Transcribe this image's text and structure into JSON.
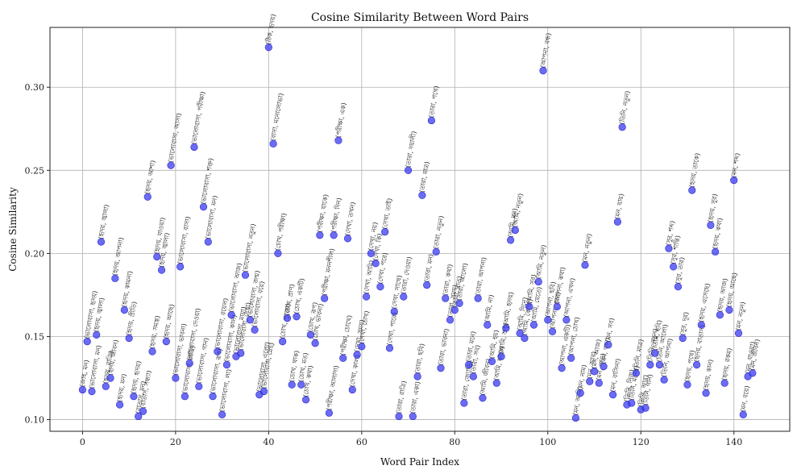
{
  "chart_data": {
    "type": "scatter",
    "title": "Cosine Similarity Between Word Pairs",
    "xlabel": "Word Pair Index",
    "ylabel": "Cosine Similarity",
    "xlim": [
      -7,
      152
    ],
    "ylim": [
      0.093,
      0.336
    ],
    "xticks": [
      0,
      20,
      40,
      60,
      80,
      100,
      120,
      140
    ],
    "yticks": [
      0.1,
      0.15,
      0.2,
      0.25,
      0.3
    ],
    "grid": true,
    "marker_color": "#3333ee",
    "points": [
      {
        "x": 0,
        "y": 0.118,
        "label": "(জাহ, মন)"
      },
      {
        "x": 1,
        "y": 0.147,
        "label": "(ভালোবাসা, হৃদয়)"
      },
      {
        "x": 2,
        "y": 0.117,
        "label": "(ভালোবাসা, মন)"
      },
      {
        "x": 3,
        "y": 0.151,
        "label": "(হৃদয়, জ্বালা)"
      },
      {
        "x": 4,
        "y": 0.207,
        "label": "(হৃদয়, জ্বালা)"
      },
      {
        "x": 5,
        "y": 0.12,
        "label": "(হৃদয়, রাত্রি)"
      },
      {
        "x": 6,
        "y": 0.125,
        "label": "(হৃদয়, জীবন)"
      },
      {
        "x": 7,
        "y": 0.185,
        "label": "(হৃদয়, আপনা)"
      },
      {
        "x": 8,
        "y": 0.109,
        "label": "(হৃদয়, মন)"
      },
      {
        "x": 9,
        "y": 0.166,
        "label": "(হৃদয়, কামনা)"
      },
      {
        "x": 10,
        "y": 0.149,
        "label": "(হৃদয়, প্রীতি)"
      },
      {
        "x": 11,
        "y": 0.114,
        "label": "(হৃদয়, হৃদয়)"
      },
      {
        "x": 12,
        "y": 0.102,
        "label": "(বাতাস, মন)"
      },
      {
        "x": 13,
        "y": 0.105,
        "label": "(বাতাস, সন্ধ্যা)"
      },
      {
        "x": 14,
        "y": 0.234,
        "label": "(হৃদয়, আশা)"
      },
      {
        "x": 15,
        "y": 0.141,
        "label": "(হৃদয়, সমস্ত)"
      },
      {
        "x": 16,
        "y": 0.198,
        "label": "(হৃদয়, যাওয়া)"
      },
      {
        "x": 17,
        "y": 0.19,
        "label": "(হৃদয়, জ্বালা)"
      },
      {
        "x": 18,
        "y": 0.147,
        "label": "(হৃদয়, আছে)"
      },
      {
        "x": 19,
        "y": 0.253,
        "label": "(ভালোবাসা, আসা)"
      },
      {
        "x": 20,
        "y": 0.125,
        "label": "(ভালোবাসা, ভাবনা)"
      },
      {
        "x": 21,
        "y": 0.192,
        "label": "(ভালোবাসা, বাসা)"
      },
      {
        "x": 22,
        "y": 0.114,
        "label": "(ভালোবাসা, রাত্রি)"
      },
      {
        "x": 23,
        "y": 0.134,
        "label": "(ভালোবাসা, দেওয়া)"
      },
      {
        "x": 24,
        "y": 0.264,
        "label": "(ভালোবাসা, পরীক্ষা)"
      },
      {
        "x": 25,
        "y": 0.12,
        "label": "(ভালোবাসা, গান)"
      },
      {
        "x": 26,
        "y": 0.228,
        "label": "(ভালোবাসা, শক্ত)"
      },
      {
        "x": 27,
        "y": 0.207,
        "label": "(ভালোবাসা, মন)"
      },
      {
        "x": 28,
        "y": 0.114,
        "label": "(ভালোবাসা, রূপ)"
      },
      {
        "x": 29,
        "y": 0.141,
        "label": "(ভালোবাসা, রয়েল)"
      },
      {
        "x": 30,
        "y": 0.103,
        "label": "(ভালোবাসা, লা)"
      },
      {
        "x": 31,
        "y": 0.133,
        "label": "(ভালোবাসা, কাল)"
      },
      {
        "x": 32,
        "y": 0.163,
        "label": "(ভালোবাসা, আজ)"
      },
      {
        "x": 33,
        "y": 0.138,
        "label": "(ভালোবাসা, মায়া)"
      },
      {
        "x": 34,
        "y": 0.14,
        "label": "(ভালোবাসা, দেখা)"
      },
      {
        "x": 35,
        "y": 0.187,
        "label": "(ভালোবাসা, নতুন)"
      },
      {
        "x": 36,
        "y": 0.16,
        "label": "(ভালোবাসা, জন্ম)"
      },
      {
        "x": 37,
        "y": 0.154,
        "label": "(ভালোবাসা, বয়ে)"
      },
      {
        "x": 38,
        "y": 0.115,
        "label": "(ভালোবাসা, এলো)"
      },
      {
        "x": 39,
        "y": 0.117,
        "label": "(ভালোবাসা, স্নেহ)"
      },
      {
        "x": 40,
        "y": 0.324,
        "label": "(ঠিক, হৃদয়)"
      },
      {
        "x": 41,
        "y": 0.266,
        "label": "(বাসা, মনোলোভা)"
      },
      {
        "x": 42,
        "y": 0.2,
        "label": "(চোখ, পরীক্ষা)"
      },
      {
        "x": 43,
        "y": 0.147,
        "label": "(চোখ, পুজো)"
      },
      {
        "x": 44,
        "y": 0.161,
        "label": "(চোখ, প্রাণ)"
      },
      {
        "x": 45,
        "y": 0.121,
        "label": "(চোখ, থাক)"
      },
      {
        "x": 46,
        "y": 0.162,
        "label": "(চোখ, একটি)"
      },
      {
        "x": 47,
        "y": 0.121,
        "label": "(চোখ, মত)"
      },
      {
        "x": 48,
        "y": 0.112,
        "label": "(চোখ, কথা)"
      },
      {
        "x": 49,
        "y": 0.151,
        "label": "(চোখ, রূপ)"
      },
      {
        "x": 50,
        "y": 0.146,
        "label": "(চোখ, ভাবনা)"
      },
      {
        "x": 51,
        "y": 0.211,
        "label": "(পরীক্ষা, যাকে)"
      },
      {
        "x": 52,
        "y": 0.173,
        "label": "(পরীক্ষা, মননশীল)"
      },
      {
        "x": 53,
        "y": 0.104,
        "label": "(পরীক্ষা, আলাদা)"
      },
      {
        "x": 54,
        "y": 0.211,
        "label": "(পরীক্ষা, দিন)"
      },
      {
        "x": 55,
        "y": 0.268,
        "label": "(পরীক্ষা, এক)"
      },
      {
        "x": 56,
        "y": 0.137,
        "label": "(পরীক্ষা, চোখে)"
      },
      {
        "x": 57,
        "y": 0.209,
        "label": "(দেখা, তখন)"
      },
      {
        "x": 58,
        "y": 0.118,
        "label": "(দেখা, কাল)"
      },
      {
        "x": 59,
        "y": 0.139,
        "label": "(দেখা, সময়)"
      },
      {
        "x": 60,
        "y": 0.144,
        "label": "(দেখা, চোখ)"
      },
      {
        "x": 61,
        "y": 0.174,
        "label": "(দেখা, আমি)"
      },
      {
        "x": 62,
        "y": 0.2,
        "label": "(দেখা, নয়)"
      },
      {
        "x": 63,
        "y": 0.194,
        "label": "(দেখা, কি)"
      },
      {
        "x": 64,
        "y": 0.18,
        "label": "(দেখা, পরে)"
      },
      {
        "x": 65,
        "y": 0.213,
        "label": "(দেখা, তাই)"
      },
      {
        "x": 66,
        "y": 0.143,
        "label": "(দেখা, পারে)"
      },
      {
        "x": 67,
        "y": 0.165,
        "label": "(দেখা, সাথে)"
      },
      {
        "x": 68,
        "y": 0.102,
        "label": "(তারা, রাত্রি)"
      },
      {
        "x": 69,
        "y": 0.174,
        "label": "(তারা, দেওয়া)"
      },
      {
        "x": 70,
        "y": 0.25,
        "label": "(তারা, দয়ালী)"
      },
      {
        "x": 71,
        "y": 0.102,
        "label": "(তারা, একা)"
      },
      {
        "x": 72,
        "y": 0.126,
        "label": "(তারা, ছবি)"
      },
      {
        "x": 73,
        "y": 0.235,
        "label": "(তারা, মাত্র)"
      },
      {
        "x": 74,
        "y": 0.181,
        "label": "(তারা, মন)"
      },
      {
        "x": 75,
        "y": 0.28,
        "label": "(তারা, পথে)"
      },
      {
        "x": 76,
        "y": 0.201,
        "label": "(তারা, নতুন)"
      },
      {
        "x": 77,
        "y": 0.131,
        "label": "(তারা, ভাবনা)"
      },
      {
        "x": 78,
        "y": 0.173,
        "label": "(তারা, কথা)"
      },
      {
        "x": 79,
        "y": 0.16,
        "label": "(তারা, সময়)"
      },
      {
        "x": 80,
        "y": 0.166,
        "label": "(তারা, রাত)"
      },
      {
        "x": 81,
        "y": 0.17,
        "label": "(তারা, আলো)"
      },
      {
        "x": 82,
        "y": 0.11,
        "label": "(তারা, জ্যোতি)"
      },
      {
        "x": 83,
        "y": 0.133,
        "label": "(তারা, মনে)"
      },
      {
        "x": 84,
        "y": 0.126,
        "label": "(তারা, সব)"
      },
      {
        "x": 85,
        "y": 0.173,
        "label": "(তারা, আপনা)"
      },
      {
        "x": 86,
        "y": 0.113,
        "label": "(আমি, জীবন)"
      },
      {
        "x": 87,
        "y": 0.157,
        "label": "(আমি, না)"
      },
      {
        "x": 88,
        "y": 0.135,
        "label": "(আমি, হয়)"
      },
      {
        "x": 89,
        "y": 0.122,
        "label": "(আমি, যাকে)"
      },
      {
        "x": 90,
        "y": 0.138,
        "label": "(আমি, শুধু)"
      },
      {
        "x": 91,
        "y": 0.155,
        "label": "(আমি, হৃদয়)"
      },
      {
        "x": 92,
        "y": 0.208,
        "label": "(আমি, মন)"
      },
      {
        "x": 93,
        "y": 0.214,
        "label": "(আমি, নতুন)"
      },
      {
        "x": 94,
        "y": 0.152,
        "label": "(আমি, দিনে)"
      },
      {
        "x": 95,
        "y": 0.149,
        "label": "(আমি, কোথা)"
      },
      {
        "x": 96,
        "y": 0.168,
        "label": "(আমি, সুর)"
      },
      {
        "x": 97,
        "y": 0.157,
        "label": "(আমি, যেতে)"
      },
      {
        "x": 98,
        "y": 0.183,
        "label": "(আমি, নতুন)"
      },
      {
        "x": 99,
        "y": 0.31,
        "label": "(আপনা, বন্ধ)"
      },
      {
        "x": 100,
        "y": 0.16,
        "label": "(আপনা, ছবি)"
      },
      {
        "x": 101,
        "y": 0.153,
        "label": "(আপনা, প্রাণ)"
      },
      {
        "x": 102,
        "y": 0.168,
        "label": "(আপনা, কথা)"
      },
      {
        "x": 103,
        "y": 0.131,
        "label": "(আপনা, একটি)"
      },
      {
        "x": 104,
        "y": 0.16,
        "label": "(আপনা, এখন)"
      },
      {
        "x": 105,
        "y": 0.137,
        "label": "(আপনা, চোখ)"
      },
      {
        "x": 106,
        "y": 0.101,
        "label": "(মন, আমি)"
      },
      {
        "x": 107,
        "y": 0.116,
        "label": "(মন, নাম)"
      },
      {
        "x": 108,
        "y": 0.193,
        "label": "(মন, নতুন)"
      },
      {
        "x": 109,
        "y": 0.123,
        "label": "(মন, আর)"
      },
      {
        "x": 110,
        "y": 0.129,
        "label": "(মন, আজ)"
      },
      {
        "x": 111,
        "y": 0.122,
        "label": "(মন, পাড়)"
      },
      {
        "x": 112,
        "y": 0.132,
        "label": "(মন, গান)"
      },
      {
        "x": 113,
        "y": 0.145,
        "label": "(মন, সব)"
      },
      {
        "x": 114,
        "y": 0.115,
        "label": "(মন, বাসিনা)"
      },
      {
        "x": 115,
        "y": 0.219,
        "label": "(মন, যায়)"
      },
      {
        "x": 116,
        "y": 0.276,
        "label": "(তিনি, নতুন)"
      },
      {
        "x": 117,
        "y": 0.109,
        "label": "(তিনি, নিজ)"
      },
      {
        "x": 118,
        "y": 0.11,
        "label": "(তিনি, মনের)"
      },
      {
        "x": 119,
        "y": 0.128,
        "label": "(তিনি, মাত্র)"
      },
      {
        "x": 120,
        "y": 0.106,
        "label": "(তিনি, আর)"
      },
      {
        "x": 121,
        "y": 0.107,
        "label": "(তিনি, গান)"
      },
      {
        "x": 122,
        "y": 0.133,
        "label": "(তিনি, নতুন)"
      },
      {
        "x": 123,
        "y": 0.14,
        "label": "(তিনি, ছবি)"
      },
      {
        "x": 124,
        "y": 0.133,
        "label": "(তিনি, আলো)"
      },
      {
        "x": 125,
        "y": 0.124,
        "label": "(তিনি, আপনা)"
      },
      {
        "x": 126,
        "y": 0.203,
        "label": "(সুর, শব্দ)"
      },
      {
        "x": 127,
        "y": 0.192,
        "label": "(সুর, শান্তি)"
      },
      {
        "x": 128,
        "y": 0.18,
        "label": "(সুর, তার)"
      },
      {
        "x": 129,
        "y": 0.149,
        "label": "(সুর, দূর)"
      },
      {
        "x": 130,
        "y": 0.121,
        "label": "(হৃদয়, পথে)"
      },
      {
        "x": 131,
        "y": 0.238,
        "label": "(হৃদয়, তাকে)"
      },
      {
        "x": 132,
        "y": 0.133,
        "label": "(হৃদয়, বাতাস)"
      },
      {
        "x": 133,
        "y": 0.157,
        "label": "(হৃদয়, এসেছে)"
      },
      {
        "x": 134,
        "y": 0.116,
        "label": "(হৃদয়, কান)"
      },
      {
        "x": 135,
        "y": 0.217,
        "label": "(হৃদয়, সুর)"
      },
      {
        "x": 136,
        "y": 0.201,
        "label": "(হৃদয়, কথা)"
      },
      {
        "x": 137,
        "y": 0.163,
        "label": "(হৃদয়, আজ)"
      },
      {
        "x": 138,
        "y": 0.122,
        "label": "(হৃদয়, রকম)"
      },
      {
        "x": 139,
        "y": 0.166,
        "label": "(হৃদয়, আছে)"
      },
      {
        "x": 140,
        "y": 0.244,
        "label": "(মন, শব্দ)"
      },
      {
        "x": 141,
        "y": 0.152,
        "label": "(মন, নতুন)"
      },
      {
        "x": 142,
        "y": 0.103,
        "label": "(মন, বয়ে)"
      },
      {
        "x": 143,
        "y": 0.126,
        "label": "(মন, যাওয়া)"
      },
      {
        "x": 144,
        "y": 0.128,
        "label": "(মন, জীবন)"
      }
    ]
  }
}
